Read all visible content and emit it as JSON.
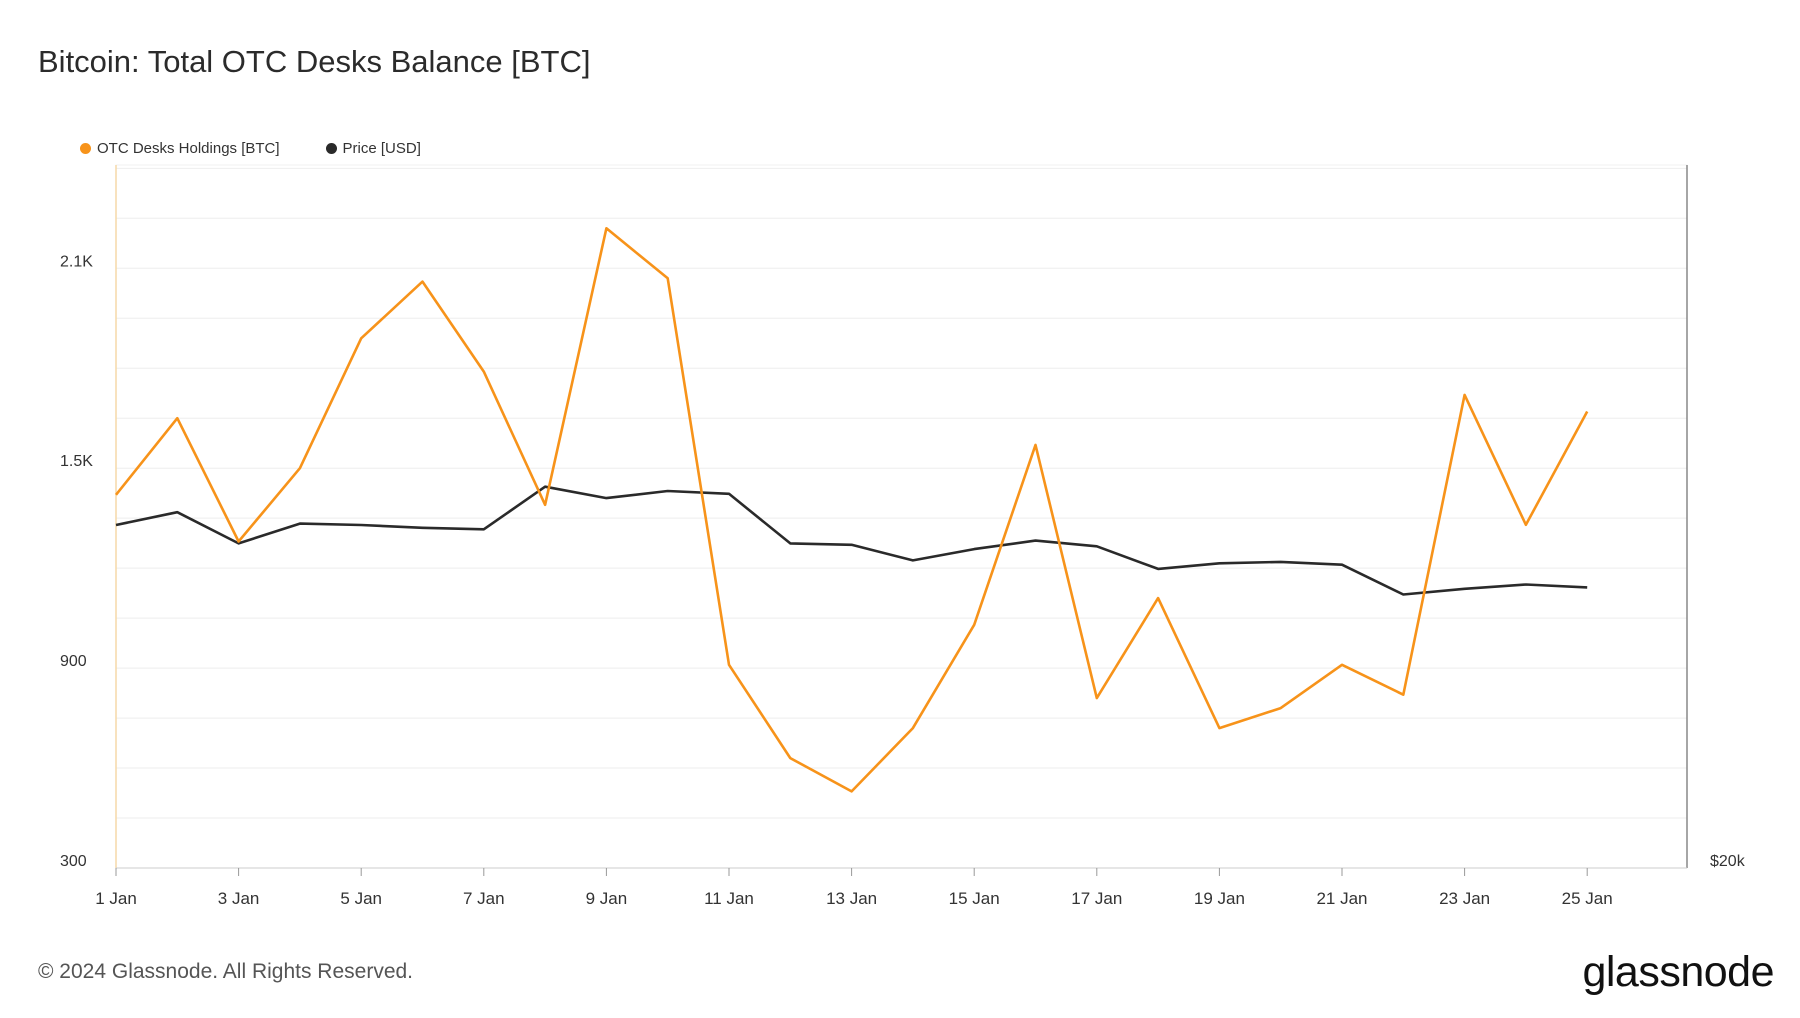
{
  "title": "Bitcoin: Total OTC Desks Balance [BTC]",
  "footer": "© 2024 Glassnode. All Rights Reserved.",
  "logo": "glassnode",
  "colors": {
    "holdings": "#f7931a",
    "price": "#2a2a2a",
    "grid": "#eeeeee"
  },
  "chart_data": {
    "type": "line",
    "x": [
      "1 Jan",
      "2 Jan",
      "3 Jan",
      "4 Jan",
      "5 Jan",
      "6 Jan",
      "7 Jan",
      "8 Jan",
      "9 Jan",
      "10 Jan",
      "11 Jan",
      "12 Jan",
      "13 Jan",
      "14 Jan",
      "15 Jan",
      "16 Jan",
      "17 Jan",
      "18 Jan",
      "19 Jan",
      "20 Jan",
      "21 Jan",
      "22 Jan",
      "23 Jan",
      "24 Jan",
      "25 Jan"
    ],
    "x_ticks": [
      "1 Jan",
      "3 Jan",
      "5 Jan",
      "7 Jan",
      "9 Jan",
      "11 Jan",
      "13 Jan",
      "15 Jan",
      "17 Jan",
      "19 Jan",
      "21 Jan",
      "23 Jan",
      "25 Jan"
    ],
    "series": [
      {
        "name": "OTC Desks Holdings [BTC]",
        "axis": "left",
        "values": [
          1420,
          1650,
          1280,
          1500,
          1890,
          2060,
          1790,
          1390,
          2220,
          2070,
          910,
          630,
          530,
          720,
          1030,
          1570,
          810,
          1110,
          720,
          780,
          910,
          820,
          1720,
          1330,
          1670
        ]
      },
      {
        "name": "Price [USD]",
        "axis": "right",
        "values": [
          44200,
          45100,
          42900,
          44300,
          44200,
          44000,
          43900,
          46900,
          46100,
          46600,
          46400,
          42900,
          42800,
          41700,
          42500,
          43100,
          42700,
          41100,
          41500,
          41600,
          41400,
          39300,
          39700,
          40000,
          39800
        ]
      }
    ],
    "y_left": {
      "ticks": [
        "2.1K",
        "1.5K",
        "900",
        "300"
      ],
      "tick_values": [
        2100,
        1500,
        900,
        300
      ],
      "range": [
        300,
        2410
      ]
    },
    "y_right": {
      "ticks": [
        "$20k"
      ],
      "tick_values": [
        20000
      ],
      "range": [
        20000,
        69600
      ]
    },
    "grid": true,
    "legend_position": "top-left"
  }
}
